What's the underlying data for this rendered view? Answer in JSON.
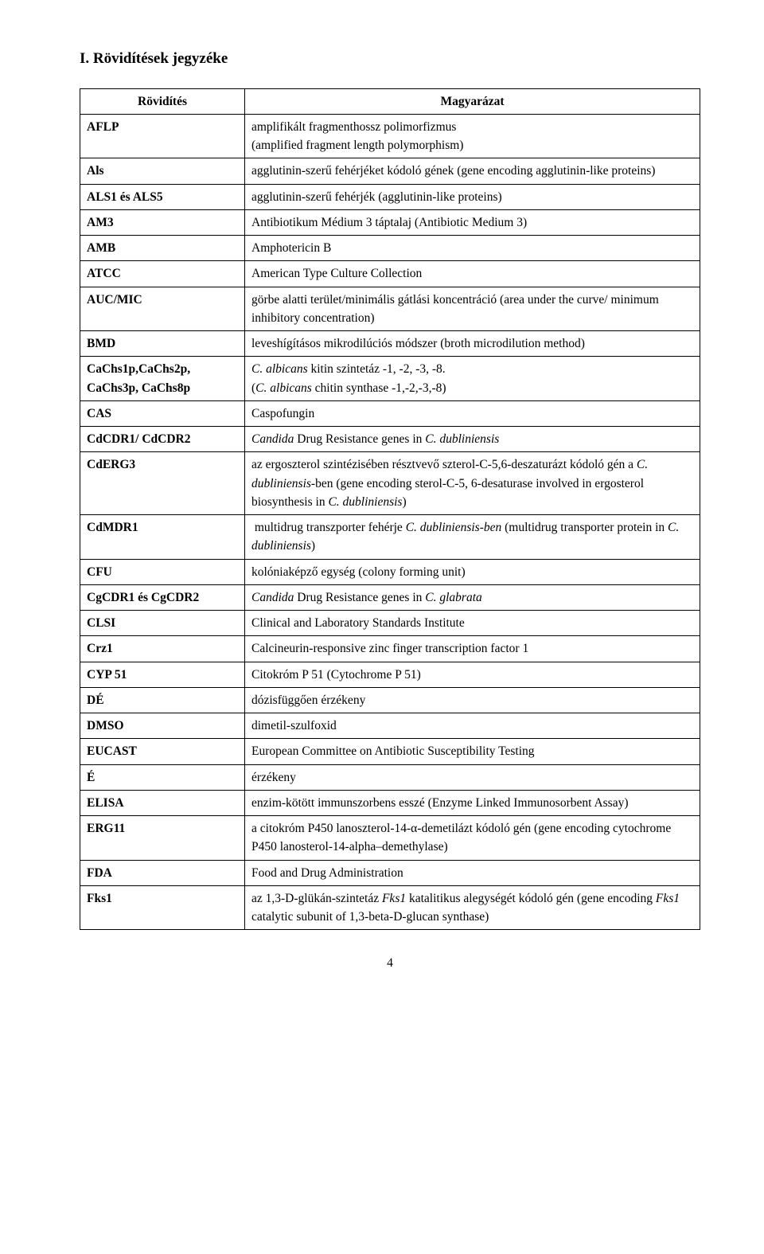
{
  "title": "I. Rövidítések jegyzéke",
  "header": {
    "col1": "Rövidítés",
    "col2": "Magyarázat"
  },
  "rows": [
    {
      "k": "AFLP",
      "v": "amplifikált fragmenthossz polimorfizmus",
      "v2": "(amplified fragment length polymorphism)"
    },
    {
      "k": "Als",
      "v": "agglutinin-szerű fehérjéket kódoló gének (gene encoding agglutinin-like proteins)",
      "justify": true
    },
    {
      "k": "ALS1 és ALS5",
      "v": "agglutinin-szerű fehérjék (agglutinin-like proteins)"
    },
    {
      "k": "AM3",
      "v": "Antibiotikum Médium 3 táptalaj (Antibiotic Medium 3)"
    },
    {
      "k": "AMB",
      "v": "Amphotericin B"
    },
    {
      "k": "ATCC",
      "v": "American Type Culture Collection"
    },
    {
      "k": "AUC/MIC",
      "v": "görbe alatti terület/minimális gátlási koncentráció (area under the curve/ minimum inhibitory concentration)",
      "justify": true
    },
    {
      "k": "BMD",
      "v": "leveshígításos mikrodilúciós módszer (broth microdilution method)"
    },
    {
      "k": "CaChs1p,CaChs2p, CaChs3p, CaChs8p",
      "v_html": "<span class=\"italic\">C. albicans</span> kitin szintetáz -1, -2, -3, -8.<br>(<span class=\"italic\">C. albicans</span> chitin synthase -1,-2,-3,-8)"
    },
    {
      "k": "CAS",
      "v": "Caspofungin"
    },
    {
      "k": "CdCDR1/ CdCDR2",
      "v_html": "<span class=\"italic\">Candida</span> Drug Resistance genes in <span class=\"italic\">C. dubliniensis</span>"
    },
    {
      "k": "CdERG3",
      "v_html": "az ergoszterol szintézisében résztvevő szterol-C-5,6-deszaturázt kódoló gén a <span class=\"italic\">C. dubliniensis</span>-ben (gene encoding sterol-C-5, 6-desaturase involved in ergosterol biosynthesis in <span class=\"italic\">C. dubliniensis</span>)"
    },
    {
      "k": "CdMDR1",
      "v_html": "&nbsp;multidrug transzporter fehérje <span class=\"italic\">C. dubliniensis-ben</span> (multidrug transporter protein in <span class=\"italic\">C. dubliniensis</span>)"
    },
    {
      "k": "CFU",
      "v": "kolóniaképző egység (colony forming unit)"
    },
    {
      "k": "CgCDR1 és CgCDR2",
      "v_html": "<span class=\"italic\">Candida</span> Drug Resistance genes in <span class=\"italic\">C. glabrata</span>"
    },
    {
      "k": "CLSI",
      "v": "Clinical and Laboratory Standards Institute"
    },
    {
      "k": "Crz1",
      "v": "Calcineurin-responsive zinc finger transcription factor 1"
    },
    {
      "k": "CYP 51",
      "v": "Citokróm P 51 (Cytochrome P 51)"
    },
    {
      "k": "DÉ",
      "v": "dózisfüggően érzékeny"
    },
    {
      "k": "DMSO",
      "v": "dimetil-szulfoxid"
    },
    {
      "k": "EUCAST",
      "v": "European Committee on Antibiotic Susceptibility Testing"
    },
    {
      "k": "É",
      "v": "érzékeny"
    },
    {
      "k": "ELISA",
      "v": "enzim-kötött immunszorbens esszé (Enzyme Linked Immunosorbent Assay)"
    },
    {
      "k": "ERG11",
      "v": "a citokróm P450 lanoszterol-14-α-demetilázt kódoló gén (gene encoding cytochrome P450 lanosterol-14-alpha–demethylase)",
      "justify": true
    },
    {
      "k": "FDA",
      "v": "Food and Drug Administration"
    },
    {
      "k": "Fks1",
      "v_html": "az 1,3-D-glükán-szintetáz <span class=\"italic\">Fks1</span> katalitikus alegységét kódoló gén (gene encoding <span class=\"italic\">Fks1</span> catalytic subunit of 1,3-beta-D-glucan synthase)",
      "justify": true
    }
  ],
  "page_number": "4"
}
